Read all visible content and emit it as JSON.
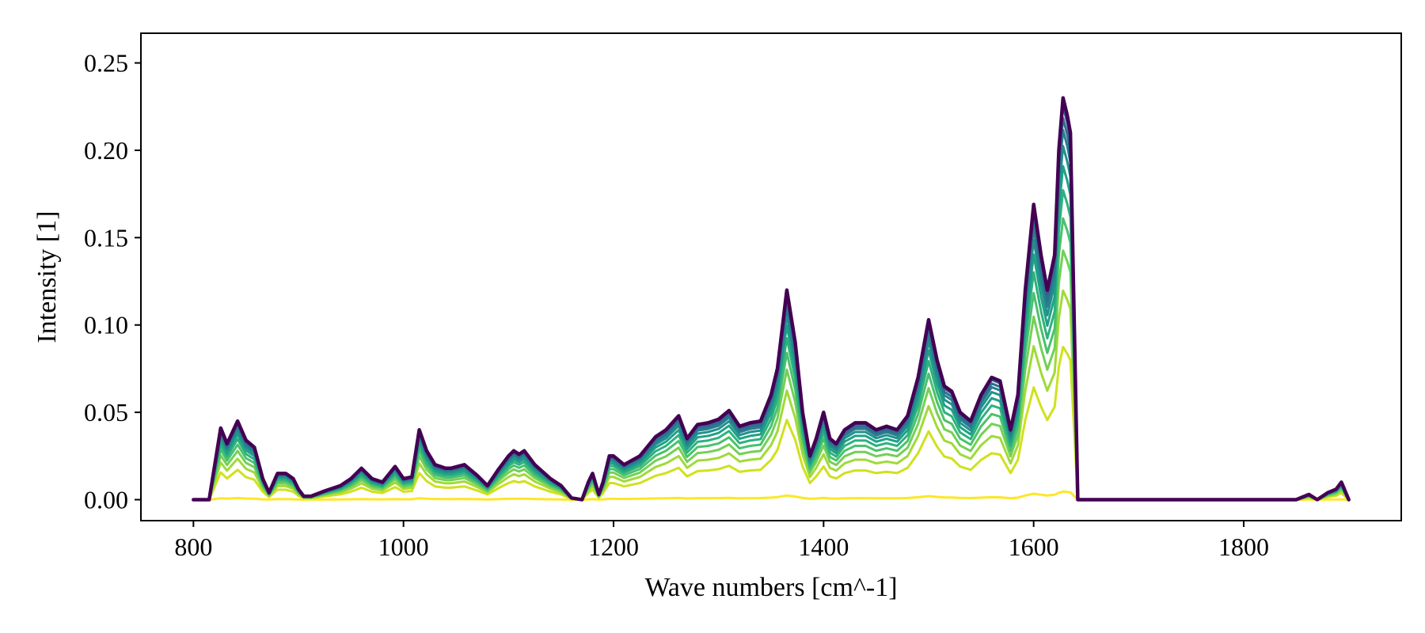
{
  "chart_data": {
    "type": "line",
    "title": "",
    "xlabel": "Wave numbers [cm^-1]",
    "ylabel": "Intensity [1]",
    "xlim": [
      750,
      1950
    ],
    "ylim": [
      -0.012,
      0.267
    ],
    "xticks": [
      800,
      1000,
      1200,
      1400,
      1600,
      1800
    ],
    "xtick_labels": [
      "800",
      "1000",
      "1200",
      "1400",
      "1600",
      "1800"
    ],
    "yticks": [
      0.0,
      0.05,
      0.1,
      0.15,
      0.2,
      0.25
    ],
    "ytick_labels": [
      "0.00",
      "0.05",
      "0.10",
      "0.15",
      "0.20",
      "0.25"
    ],
    "grid": false,
    "legend": "none",
    "colormap": "viridis",
    "series_count": 12,
    "color_order": "yellow (first, lowest) to dark purple (last, highest)",
    "reference_spectrum_final": {
      "x": [
        800,
        815,
        826,
        832,
        842,
        850,
        858,
        866,
        872,
        880,
        888,
        895,
        900,
        905,
        912,
        925,
        940,
        950,
        960,
        970,
        980,
        992,
        1000,
        1008,
        1015,
        1022,
        1030,
        1040,
        1045,
        1058,
        1070,
        1080,
        1090,
        1100,
        1105,
        1110,
        1115,
        1125,
        1140,
        1150,
        1160,
        1170,
        1176,
        1180,
        1186,
        1190,
        1196,
        1200,
        1210,
        1225,
        1240,
        1250,
        1262,
        1270,
        1280,
        1290,
        1300,
        1310,
        1320,
        1330,
        1340,
        1350,
        1356,
        1365,
        1373,
        1380,
        1387,
        1393,
        1400,
        1406,
        1412,
        1420,
        1430,
        1440,
        1450,
        1460,
        1470,
        1480,
        1490,
        1500,
        1508,
        1515,
        1522,
        1530,
        1540,
        1550,
        1560,
        1568,
        1578,
        1585,
        1592,
        1600,
        1607,
        1613,
        1620,
        1624,
        1628,
        1632,
        1635,
        1638,
        1642,
        1650,
        1660,
        1700,
        1750,
        1800,
        1850,
        1862,
        1870,
        1880,
        1888,
        1893,
        1900
      ],
      "y": [
        0.0,
        0.0,
        0.041,
        0.032,
        0.045,
        0.034,
        0.03,
        0.012,
        0.004,
        0.015,
        0.015,
        0.012,
        0.006,
        0.002,
        0.002,
        0.005,
        0.008,
        0.012,
        0.018,
        0.012,
        0.01,
        0.019,
        0.012,
        0.013,
        0.04,
        0.028,
        0.02,
        0.018,
        0.018,
        0.02,
        0.014,
        0.008,
        0.017,
        0.025,
        0.028,
        0.026,
        0.028,
        0.02,
        0.012,
        0.008,
        0.001,
        0.0,
        0.01,
        0.015,
        0.003,
        0.01,
        0.025,
        0.025,
        0.02,
        0.025,
        0.036,
        0.04,
        0.048,
        0.035,
        0.043,
        0.044,
        0.046,
        0.051,
        0.042,
        0.044,
        0.045,
        0.06,
        0.075,
        0.12,
        0.09,
        0.05,
        0.025,
        0.035,
        0.05,
        0.035,
        0.032,
        0.04,
        0.044,
        0.044,
        0.04,
        0.042,
        0.04,
        0.048,
        0.07,
        0.103,
        0.08,
        0.065,
        0.062,
        0.05,
        0.045,
        0.06,
        0.07,
        0.068,
        0.04,
        0.06,
        0.12,
        0.169,
        0.14,
        0.12,
        0.14,
        0.2,
        0.23,
        0.22,
        0.21,
        0.12,
        0.0,
        0.0,
        0.0,
        0.0,
        0.0,
        0.0,
        0.0,
        0.003,
        0.0,
        0.004,
        0.006,
        0.01,
        0.0
      ]
    },
    "series_scale_factors": [
      0.02,
      0.38,
      0.52,
      0.62,
      0.7,
      0.77,
      0.83,
      0.88,
      0.92,
      0.95,
      0.98,
      1.0
    ],
    "series_colors": [
      "#fde725",
      "#d0e11c",
      "#a0da39",
      "#73d056",
      "#4ac16d",
      "#2db27d",
      "#1fa187",
      "#21918c",
      "#277f8e",
      "#2e6e8e",
      "#365c8d",
      "#440154"
    ]
  }
}
